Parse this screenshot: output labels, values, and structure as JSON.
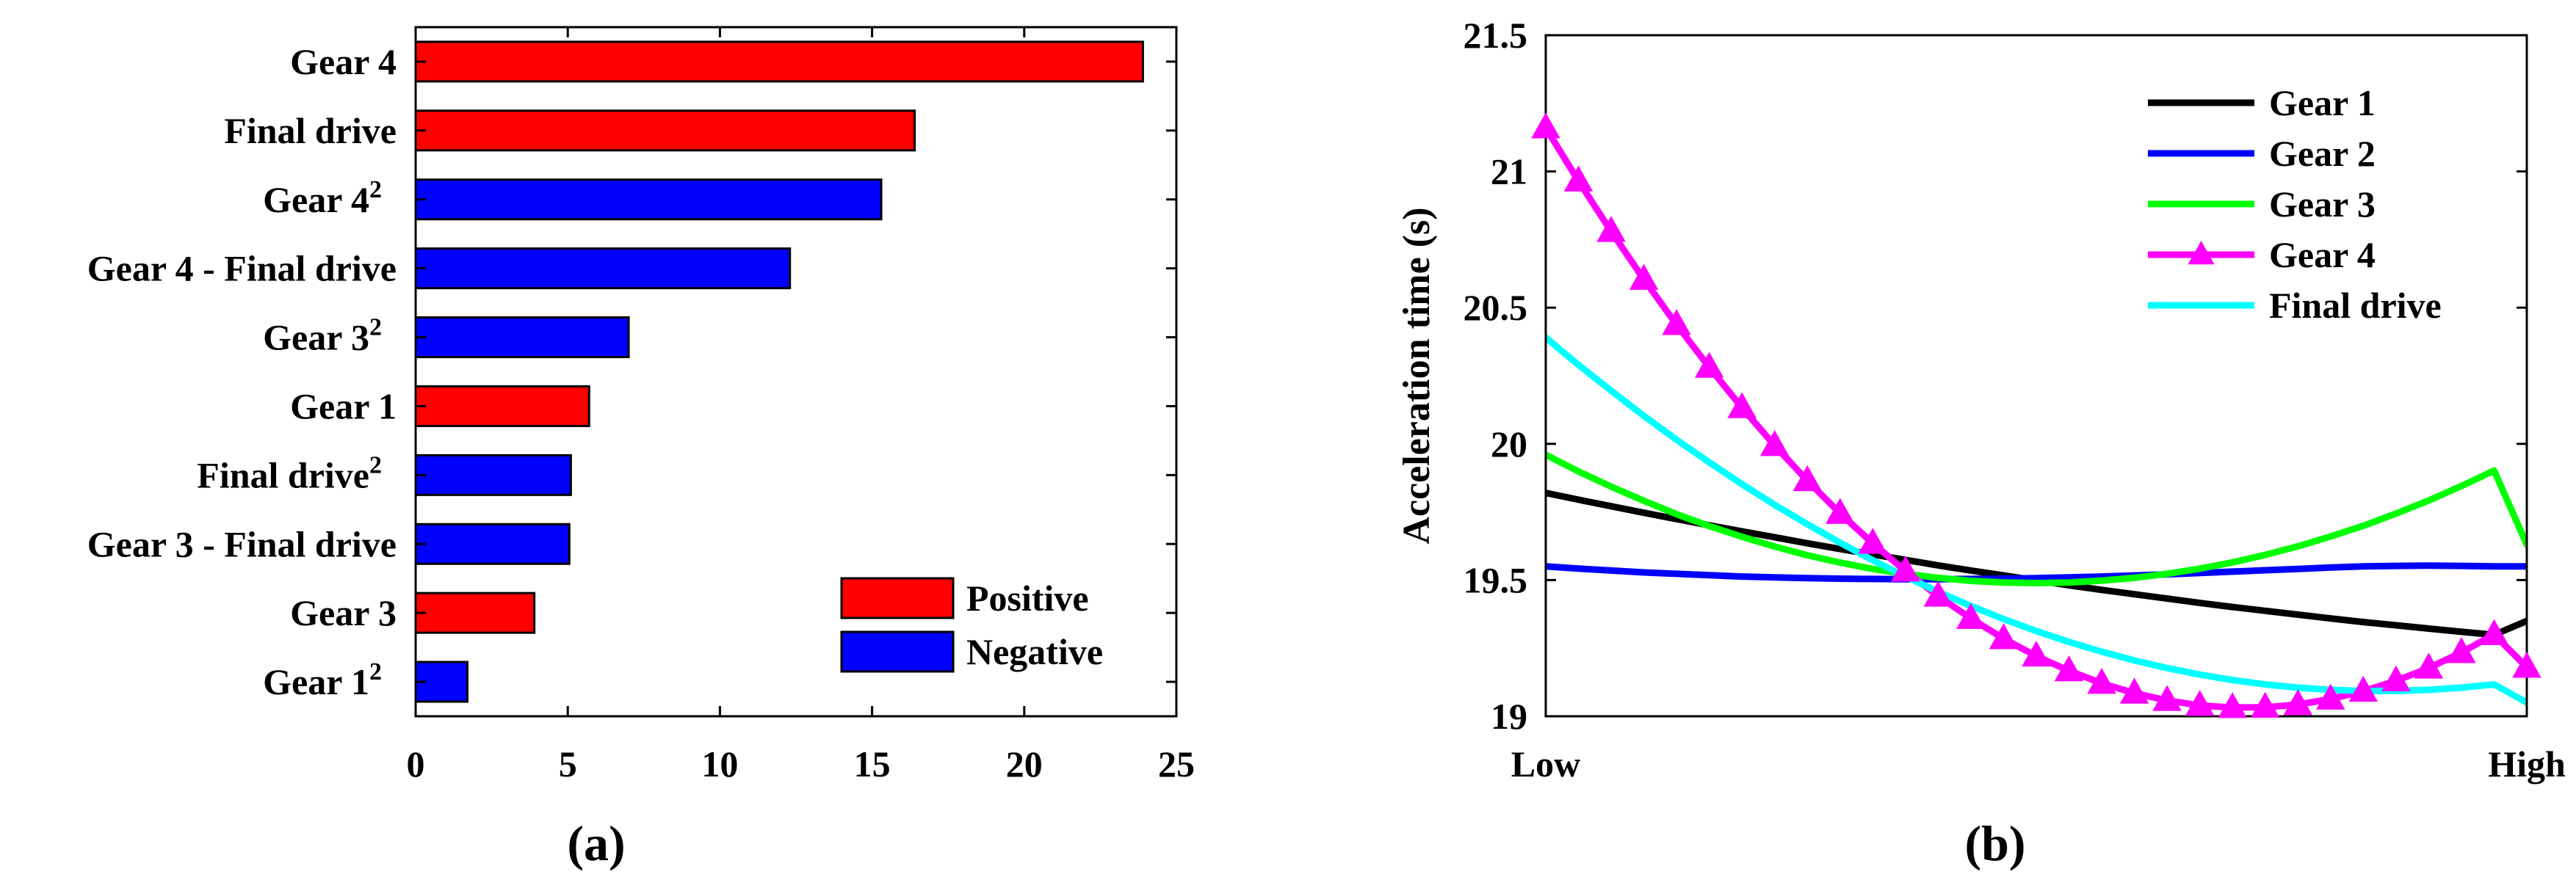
{
  "chart_data": [
    {
      "type": "bar",
      "orientation": "horizontal",
      "panel_label": "(a)",
      "title": "",
      "xlabel": "",
      "ylabel": "",
      "xlim": [
        0,
        25
      ],
      "xticks": [
        "0",
        "5",
        "10",
        "15",
        "20",
        "25"
      ],
      "grid": false,
      "legend_position": "bottom-right",
      "legend": [
        {
          "name": "Positive",
          "color": "#ff0000"
        },
        {
          "name": "Negative",
          "color": "#0000ff"
        }
      ],
      "bars": [
        {
          "base": "Gear 4",
          "sup": "",
          "value": 23.9,
          "sign": "Positive"
        },
        {
          "base": "Final drive",
          "sup": "",
          "value": 16.4,
          "sign": "Positive"
        },
        {
          "base": "Gear 4",
          "sup": "2",
          "value": 15.3,
          "sign": "Negative"
        },
        {
          "base": "Gear 4 - Final drive",
          "sup": "",
          "value": 12.3,
          "sign": "Negative"
        },
        {
          "base": "Gear 3",
          "sup": "2",
          "value": 7.0,
          "sign": "Negative"
        },
        {
          "base": "Gear 1",
          "sup": "",
          "value": 5.7,
          "sign": "Positive"
        },
        {
          "base": "Final drive",
          "sup": "2",
          "value": 5.1,
          "sign": "Negative"
        },
        {
          "base": "Gear 3 - Final drive",
          "sup": "",
          "value": 5.05,
          "sign": "Negative"
        },
        {
          "base": "Gear 3",
          "sup": "",
          "value": 3.9,
          "sign": "Positive"
        },
        {
          "base": "Gear 1",
          "sup": "2",
          "value": 1.7,
          "sign": "Negative"
        }
      ]
    },
    {
      "type": "line",
      "panel_label": "(b)",
      "title": "",
      "xlabel": "",
      "ylabel": "Acceleration time (s)",
      "xlim": [
        0,
        1
      ],
      "xtick_labels": [
        "Low",
        "High"
      ],
      "ylim": [
        19,
        21.5
      ],
      "yticks": [
        "19",
        "19.5",
        "20",
        "20.5",
        "21",
        "21.5"
      ],
      "grid": false,
      "legend_position": "top-right",
      "x": [
        0,
        0.0333,
        0.0667,
        0.1,
        0.1333,
        0.1667,
        0.2,
        0.2333,
        0.2667,
        0.3,
        0.3333,
        0.3667,
        0.4,
        0.4333,
        0.4667,
        0.5,
        0.5333,
        0.5667,
        0.6,
        0.6333,
        0.6667,
        0.7,
        0.7333,
        0.7667,
        0.8,
        0.8333,
        0.8667,
        0.9,
        0.9333,
        0.9667,
        1
      ],
      "series": [
        {
          "name": "Gear 1",
          "color": "#000000",
          "marker": "none",
          "values": [
            19.82,
            19.795,
            19.771,
            19.747,
            19.724,
            19.701,
            19.679,
            19.657,
            19.635,
            19.614,
            19.594,
            19.574,
            19.554,
            19.535,
            19.517,
            19.499,
            19.481,
            19.464,
            19.448,
            19.432,
            19.416,
            19.401,
            19.387,
            19.373,
            19.359,
            19.346,
            19.334,
            19.322,
            19.31,
            19.299,
            19.35
          ]
        },
        {
          "name": "Gear 2",
          "color": "#0000ff",
          "marker": "none",
          "values": [
            19.55,
            19.542,
            19.535,
            19.528,
            19.523,
            19.518,
            19.513,
            19.51,
            19.507,
            19.505,
            19.504,
            19.503,
            19.503,
            19.504,
            19.505,
            19.507,
            19.51,
            19.513,
            19.517,
            19.521,
            19.526,
            19.531,
            19.536,
            19.541,
            19.546,
            19.55,
            19.552,
            19.553,
            19.552,
            19.55,
            19.55
          ]
        },
        {
          "name": "Gear 3",
          "color": "#00ff00",
          "marker": "none",
          "values": [
            19.96,
            19.899,
            19.843,
            19.791,
            19.742,
            19.698,
            19.659,
            19.623,
            19.591,
            19.564,
            19.541,
            19.522,
            19.508,
            19.497,
            19.491,
            19.489,
            19.491,
            19.498,
            19.508,
            19.523,
            19.542,
            19.565,
            19.592,
            19.624,
            19.66,
            19.699,
            19.744,
            19.792,
            19.845,
            19.902,
            19.63
          ]
        },
        {
          "name": "Gear 4",
          "color": "#ff00ff",
          "marker": "triangle",
          "values": [
            21.16,
            20.965,
            20.78,
            20.604,
            20.438,
            20.281,
            20.133,
            19.994,
            19.865,
            19.745,
            19.635,
            19.533,
            19.441,
            19.359,
            19.285,
            19.221,
            19.167,
            19.121,
            19.085,
            19.058,
            19.04,
            19.032,
            19.033,
            19.043,
            19.063,
            19.092,
            19.13,
            19.177,
            19.234,
            19.3,
            19.18
          ]
        },
        {
          "name": "Final drive",
          "color": "#00ffff",
          "marker": "none",
          "values": [
            20.39,
            20.29,
            20.195,
            20.103,
            20.015,
            19.932,
            19.852,
            19.776,
            19.705,
            19.637,
            19.573,
            19.513,
            19.457,
            19.405,
            19.357,
            19.313,
            19.273,
            19.237,
            19.205,
            19.177,
            19.153,
            19.133,
            19.117,
            19.105,
            19.097,
            19.093,
            19.093,
            19.097,
            19.105,
            19.117,
            19.05
          ]
        }
      ]
    }
  ]
}
